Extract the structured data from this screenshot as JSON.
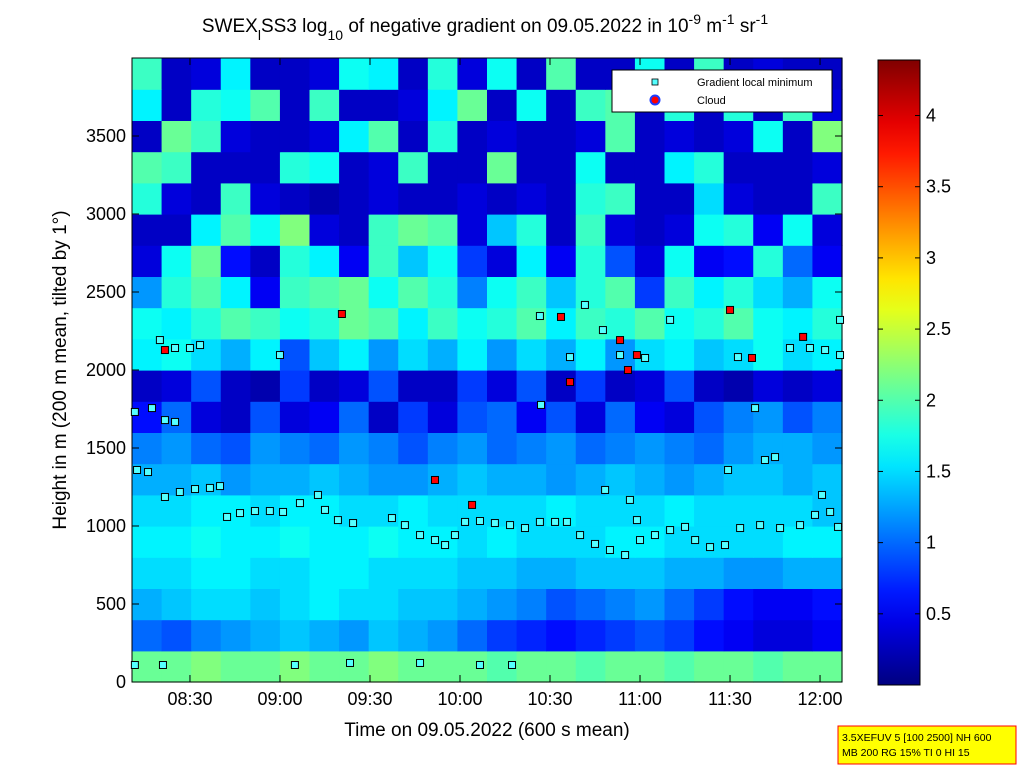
{
  "chart_data": {
    "type": "heatmap",
    "title": [
      "SWEX",
      "l",
      "SS3 log",
      "10",
      " of negative gradient on 09.05.2022 in 10",
      "-9",
      " m",
      "-1",
      " sr",
      "-1"
    ],
    "x_label": "Time on 09.05.2022 (600 s mean)",
    "y_label": "Height in m (200 m mean, tilted by 1°)",
    "xlim": [
      8.178,
      12.122
    ],
    "xticks": [
      {
        "value": 8.5,
        "label": "08:30"
      },
      {
        "value": 9,
        "label": "09:00"
      },
      {
        "value": 9.5,
        "label": "09:30"
      },
      {
        "value": 10,
        "label": "10:00"
      },
      {
        "value": 10.5,
        "label": "10:30"
      },
      {
        "value": 11,
        "label": "11:00"
      },
      {
        "value": 11.5,
        "label": "11:30"
      },
      {
        "value": 12,
        "label": "12:00"
      }
    ],
    "ylim": [
      0,
      4000
    ],
    "yticks": [
      0,
      500,
      1000,
      1500,
      2000,
      2500,
      3000,
      3500
    ],
    "colormap": "jet",
    "clim": [
      0,
      4.39
    ],
    "cticks": [
      0.5,
      1,
      1.5,
      2,
      2.5,
      3,
      3.5,
      4
    ],
    "legend": "upper right",
    "heatmap": {
      "z": [
        [
          2.1,
          2.1,
          2.2,
          2.1,
          2.1,
          2.2,
          2.1,
          2.1,
          2.2,
          2.1,
          2.1,
          2.1,
          2.0,
          2.1,
          2.1,
          2.0,
          2.1,
          2.1,
          2.0,
          2.1,
          2.1,
          2.0,
          2.1,
          2.1
        ],
        [
          1.0,
          0.9,
          1.1,
          1.2,
          1.3,
          1.4,
          1.3,
          1.2,
          1.4,
          1.3,
          1.2,
          1.0,
          0.8,
          0.7,
          0.6,
          0.7,
          0.8,
          0.9,
          0.8,
          0.6,
          0.5,
          0.4,
          0.4,
          0.5
        ],
        [
          1.3,
          1.4,
          1.5,
          1.5,
          1.4,
          1.5,
          1.6,
          1.5,
          1.5,
          1.4,
          1.4,
          1.3,
          1.2,
          1.1,
          0.9,
          1.0,
          1.1,
          1.2,
          1.0,
          0.8,
          0.6,
          0.5,
          0.5,
          0.6
        ],
        [
          1.5,
          1.5,
          1.6,
          1.6,
          1.5,
          1.5,
          1.6,
          1.6,
          1.5,
          1.5,
          1.5,
          1.4,
          1.4,
          1.3,
          1.3,
          1.4,
          1.4,
          1.4,
          1.3,
          1.3,
          1.2,
          1.2,
          1.3,
          1.3
        ],
        [
          1.6,
          1.6,
          1.7,
          1.6,
          1.6,
          1.7,
          1.6,
          1.6,
          1.7,
          1.6,
          1.6,
          1.5,
          1.6,
          1.5,
          1.5,
          1.5,
          1.6,
          1.6,
          1.5,
          1.5,
          1.5,
          1.5,
          1.6,
          1.6
        ],
        [
          1.5,
          1.5,
          1.6,
          1.6,
          1.5,
          1.6,
          1.6,
          1.5,
          1.5,
          1.6,
          1.5,
          1.5,
          1.5,
          1.5,
          1.6,
          1.5,
          1.5,
          1.5,
          1.6,
          1.5,
          1.5,
          1.5,
          1.5,
          1.4
        ],
        [
          1.3,
          1.3,
          1.4,
          1.2,
          1.3,
          1.3,
          1.4,
          1.3,
          1.2,
          1.2,
          1.3,
          1.4,
          1.3,
          1.3,
          1.2,
          1.3,
          1.4,
          1.3,
          1.2,
          1.3,
          1.4,
          1.4,
          1.3,
          1.4
        ],
        [
          1.1,
          1.2,
          1.0,
          0.9,
          1.2,
          1.1,
          1.0,
          1.2,
          1.1,
          0.9,
          1.1,
          1.2,
          1.0,
          1.1,
          1.2,
          1.0,
          1.1,
          1.2,
          1.1,
          1.0,
          1.2,
          1.3,
          1.3,
          1.2
        ],
        [
          0.6,
          1.0,
          0.4,
          0.3,
          0.9,
          0.4,
          0.5,
          1.0,
          0.3,
          0.8,
          0.4,
          0.9,
          1.0,
          0.5,
          0.9,
          0.4,
          1.0,
          0.5,
          0.4,
          0.9,
          1.1,
          1.2,
          0.9,
          1.1
        ],
        [
          0.3,
          0.4,
          0.9,
          0.3,
          0.2,
          0.8,
          0.3,
          0.4,
          0.9,
          0.3,
          0.3,
          0.8,
          0.4,
          0.9,
          0.3,
          0.8,
          0.3,
          0.4,
          0.9,
          0.3,
          0.2,
          0.4,
          0.3,
          0.4
        ],
        [
          1.6,
          1.7,
          1.5,
          1.3,
          1.6,
          0.9,
          1.4,
          1.6,
          1.2,
          1.5,
          1.3,
          1.6,
          1.2,
          1.5,
          1.3,
          1.6,
          1.2,
          1.5,
          1.6,
          1.4,
          1.5,
          1.7,
          1.5,
          1.6
        ],
        [
          1.7,
          1.6,
          1.8,
          2.0,
          1.9,
          1.7,
          1.8,
          2.1,
          2.0,
          1.6,
          1.9,
          1.7,
          1.8,
          2.0,
          1.6,
          1.9,
          1.8,
          2.0,
          1.7,
          1.8,
          2.0,
          1.7,
          1.6,
          1.8
        ],
        [
          1.2,
          1.8,
          2.0,
          1.6,
          0.5,
          1.9,
          2.0,
          2.1,
          1.7,
          2.0,
          1.8,
          1.1,
          1.7,
          1.9,
          1.4,
          1.8,
          2.0,
          0.8,
          1.9,
          1.6,
          1.8,
          1.5,
          1.3,
          1.7
        ],
        [
          0.4,
          1.7,
          2.1,
          0.6,
          0.3,
          1.8,
          1.6,
          0.5,
          1.9,
          1.4,
          1.7,
          0.8,
          0.4,
          1.6,
          0.5,
          1.8,
          0.9,
          0.4,
          1.7,
          0.5,
          0.6,
          1.8,
          1.0,
          0.5
        ],
        [
          0.3,
          0.3,
          1.6,
          2.0,
          1.7,
          2.2,
          0.4,
          0.3,
          1.9,
          2.1,
          2.0,
          0.4,
          1.4,
          1.8,
          0.3,
          1.9,
          0.4,
          0.3,
          0.4,
          1.7,
          1.8,
          0.5,
          1.7,
          0.4
        ],
        [
          1.8,
          0.4,
          0.3,
          1.9,
          0.4,
          0.3,
          0.2,
          0.3,
          0.4,
          0.3,
          0.3,
          0.4,
          0.3,
          0.4,
          0.3,
          1.8,
          1.9,
          0.3,
          0.3,
          1.5,
          0.4,
          0.3,
          0.3,
          1.9
        ],
        [
          2.0,
          1.9,
          0.3,
          0.3,
          0.3,
          1.8,
          1.7,
          0.3,
          0.4,
          1.9,
          0.3,
          0.3,
          2.1,
          0.3,
          0.3,
          1.7,
          0.3,
          0.3,
          1.6,
          1.8,
          0.3,
          0.3,
          0.3,
          0.4
        ],
        [
          0.3,
          2.1,
          1.9,
          0.4,
          0.3,
          0.3,
          0.4,
          1.6,
          2.0,
          0.3,
          1.8,
          0.3,
          0.4,
          0.3,
          0.3,
          0.4,
          2.0,
          0.3,
          0.4,
          0.3,
          0.4,
          1.7,
          0.3,
          2.2
        ],
        [
          1.6,
          0.3,
          1.8,
          1.7,
          2.0,
          0.3,
          1.9,
          0.3,
          0.3,
          0.4,
          1.6,
          2.1,
          0.3,
          1.7,
          0.3,
          1.9,
          2.0,
          0.3,
          1.8,
          0.3,
          1.8,
          0.3,
          1.9,
          0.4
        ],
        [
          1.9,
          0.3,
          0.4,
          1.6,
          0.3,
          0.3,
          0.4,
          1.7,
          1.6,
          0.3,
          1.8,
          0.4,
          1.7,
          0.3,
          2.0,
          0.3,
          0.3,
          1.7,
          0.3,
          1.9,
          0.3,
          0.4,
          0.3,
          0.3
        ]
      ]
    },
    "series": [
      {
        "name": "Gradient local minimum",
        "color": "#55ffff",
        "x": [
          8.194,
          8.194,
          8.35,
          8.289,
          8.206,
          8.267,
          8.361,
          8.417,
          8.361,
          8.444,
          8.528,
          8.611,
          8.667,
          8.333,
          8.417,
          8.5,
          8.556,
          8.706,
          8.778,
          8.861,
          8.944,
          9.017,
          9.0,
          9.111,
          9.211,
          9.25,
          9.322,
          9.406,
          9.622,
          9.694,
          9.778,
          9.861,
          9.917,
          9.972,
          10.028,
          10.111,
          10.194,
          10.278,
          10.361,
          10.444,
          10.528,
          10.594,
          10.667,
          10.75,
          10.833,
          10.917,
          10.444,
          10.694,
          10.794,
          10.889,
          11.028,
          10.611,
          10.45,
          10.806,
          10.944,
          10.983,
          11.0,
          11.083,
          11.167,
          11.25,
          11.306,
          11.389,
          11.472,
          11.556,
          11.667,
          11.778,
          11.889,
          11.972,
          12.056,
          12.1,
          11.167,
          11.639,
          11.489,
          11.694,
          11.75,
          11.544,
          11.833,
          11.944,
          12.028,
          12.111,
          12.111,
          12.011,
          9.083,
          9.389,
          9.778,
          10.111,
          10.289
        ],
        "values": [
          1731,
          109,
          109,
          1756,
          1359,
          1346,
          1679,
          1667,
          1186,
          1218,
          1237,
          1244,
          1256,
          2192,
          2141,
          2141,
          2160,
          1058,
          1083,
          1096,
          1096,
          1090,
          2096,
          1147,
          1199,
          1103,
          1038,
          1019,
          1051,
          1006,
          942,
          910,
          878,
          942,
          1026,
          1032,
          1019,
          1006,
          987,
          1026,
          1026,
          1026,
          942,
          885,
          846,
          814,
          2346,
          2417,
          2256,
          2096,
          2077,
          2083,
          1776,
          1231,
          1167,
          1038,
          910,
          942,
          974,
          994,
          910,
          865,
          878,
          987,
          1006,
          987,
          1006,
          1071,
          1090,
          994,
          2321,
          1756,
          1359,
          1423,
          1442,
          2083,
          2141,
          2141,
          2128,
          2096,
          2321,
          1199,
          109,
          122,
          122,
          109,
          109
        ]
      },
      {
        "name": "Cloud",
        "color": "#ff0000",
        "x": [
          8.361,
          9.344,
          10.561,
          10.611,
          10.889,
          10.933,
          10.983,
          11.5,
          11.622,
          11.906,
          10.067,
          9.861
        ],
        "values": [
          2128,
          2359,
          2340,
          1923,
          2192,
          2000,
          2096,
          2385,
          2077,
          2212,
          1135,
          1295
        ]
      }
    ]
  },
  "info_box": [
    "3.5XEFUV 5 [100 2500] NH 600",
    "MB 200 RG 15% TI 0 HI 15"
  ]
}
